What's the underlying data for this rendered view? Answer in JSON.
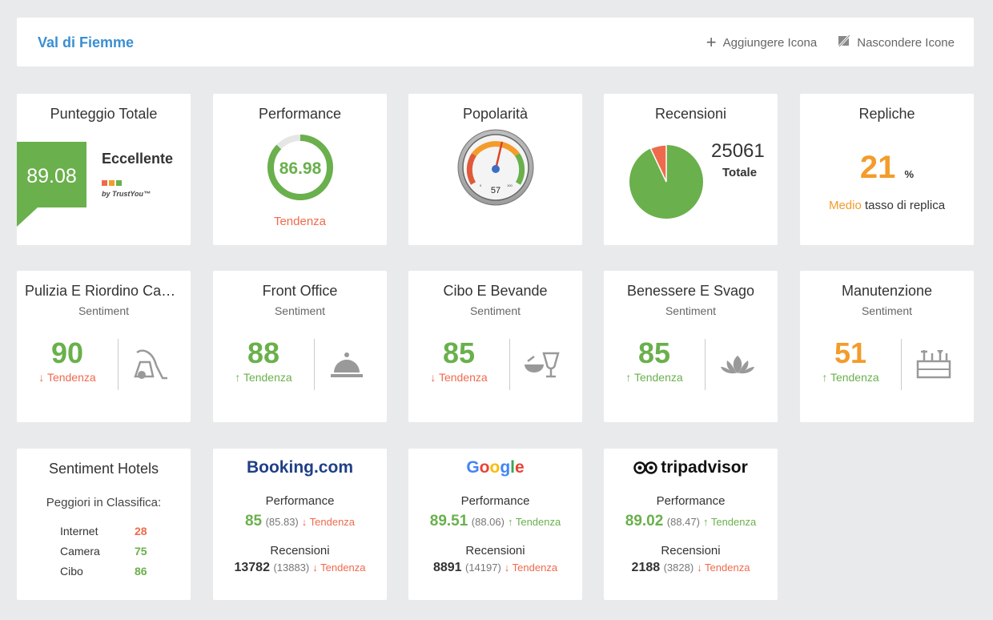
{
  "header": {
    "title": "Val di Fiemme",
    "add_label": "Aggiungere Icona",
    "hide_label": "Nascondere Icone"
  },
  "score": {
    "title": "Punteggio Totale",
    "value": "89.08",
    "label": "Eccellente",
    "by": "by TrustYou™"
  },
  "performance": {
    "title": "Performance",
    "value": "86.98",
    "fraction": 0.87,
    "trend": "Tendenza"
  },
  "popularity": {
    "title": "Popolarità",
    "value": "57",
    "scale_min": "0",
    "scale_max": "100"
  },
  "reviews": {
    "title": "Recensioni",
    "total": "25061",
    "total_label": "Totale",
    "red_fraction": 0.07
  },
  "replies": {
    "title": "Repliche",
    "value": "21",
    "unit": "%",
    "level": "Medio",
    "text": "tasso di replica"
  },
  "sentiments": [
    {
      "title": "Pulizia E Riordino Camere",
      "sub": "Sentiment",
      "value": "90",
      "trend": "↓ Tendenza",
      "value_color": "green",
      "trend_color": "red",
      "icon": "vacuum-icon"
    },
    {
      "title": "Front Office",
      "sub": "Sentiment",
      "value": "88",
      "trend": "↑ Tendenza",
      "value_color": "green",
      "trend_color": "green",
      "icon": "bell-icon"
    },
    {
      "title": "Cibo E Bevande",
      "sub": "Sentiment",
      "value": "85",
      "trend": "↓ Tendenza",
      "value_color": "green",
      "trend_color": "red",
      "icon": "food-drink-icon"
    },
    {
      "title": "Benessere E Svago",
      "sub": "Sentiment",
      "value": "85",
      "trend": "↑ Tendenza",
      "value_color": "green",
      "trend_color": "green",
      "icon": "lotus-icon"
    },
    {
      "title": "Manutenzione",
      "sub": "Sentiment",
      "value": "51",
      "trend": "↑ Tendenza",
      "value_color": "orange",
      "trend_color": "green",
      "icon": "toolbox-icon"
    }
  ],
  "hotels": {
    "title": "Sentiment Hotels",
    "subtitle": "Peggiori in Classifica:",
    "rows": [
      {
        "name": "Internet",
        "value": "28"
      },
      {
        "name": "Camera",
        "value": "75"
      },
      {
        "name": "Cibo",
        "value": "86"
      }
    ]
  },
  "platforms": [
    {
      "brand": "Booking.com",
      "perf_label": "Performance",
      "perf": "85",
      "perf_paren": "(85.83)",
      "perf_trend": "↓ Tendenza",
      "rev_label": "Recensioni",
      "rev": "13782",
      "rev_paren": "(13883)",
      "rev_trend": "↓ Tendenza"
    },
    {
      "brand": "Google",
      "perf_label": "Performance",
      "perf": "89.51",
      "perf_paren": "(88.06)",
      "perf_trend": "↑ Tendenza",
      "rev_label": "Recensioni",
      "rev": "8891",
      "rev_paren": "(14197)",
      "rev_trend": "↓ Tendenza"
    },
    {
      "brand": "tripadvisor",
      "perf_label": "Performance",
      "perf": "89.02",
      "perf_paren": "(88.47)",
      "perf_trend": "↑ Tendenza",
      "rev_label": "Recensioni",
      "rev": "2188",
      "rev_paren": "(3828)",
      "rev_trend": "↓ Tendenza"
    }
  ],
  "colors": {
    "green": "#6ab04c",
    "red": "#ef6a4c",
    "orange": "#f39c2b",
    "blue": "#3a8fd1"
  }
}
